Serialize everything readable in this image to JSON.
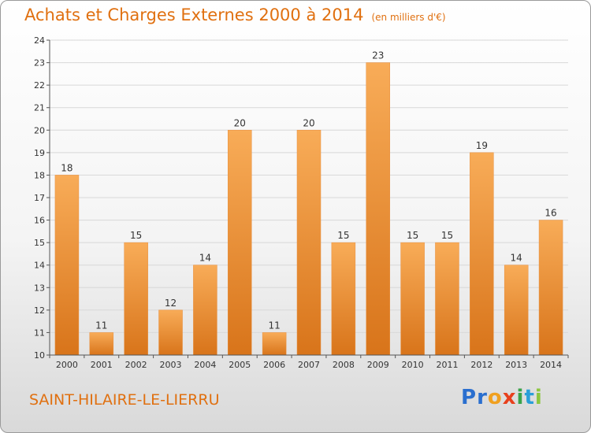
{
  "header": {
    "title": "Achats et Charges Externes 2000 à 2014",
    "subtitle": "(en milliers d'€)"
  },
  "footer": {
    "commune": "SAINT-HILAIRE-LE-LIERRU",
    "logo_letters": [
      {
        "ch": "P",
        "color": "#2a6fcf"
      },
      {
        "ch": "r",
        "color": "#2a6fcf"
      },
      {
        "ch": "o",
        "color": "#f0a020"
      },
      {
        "ch": "x",
        "color": "#e8401c"
      },
      {
        "ch": "i",
        "color": "#3aa34a"
      },
      {
        "ch": "t",
        "color": "#2a9fd8"
      },
      {
        "ch": "i",
        "color": "#8cc63e"
      }
    ]
  },
  "colors": {
    "bar_light": "#f8ac58",
    "bar_dark": "#d8741a",
    "accent": "#e07010",
    "grid": "#d8d8d8"
  },
  "chart_data": {
    "type": "bar",
    "categories": [
      "2000",
      "2001",
      "2002",
      "2003",
      "2004",
      "2005",
      "2006",
      "2007",
      "2008",
      "2009",
      "2010",
      "2011",
      "2012",
      "2013",
      "2014"
    ],
    "values": [
      18,
      11,
      15,
      12,
      14,
      20,
      11,
      20,
      15,
      23,
      15,
      15,
      19,
      14,
      16
    ],
    "ylim": [
      10,
      24
    ],
    "yticks": [
      10,
      11,
      12,
      13,
      14,
      15,
      16,
      17,
      18,
      19,
      20,
      21,
      22,
      23,
      24
    ],
    "grid": true,
    "title": "Achats et Charges Externes 2000 à 2014",
    "xlabel": "",
    "ylabel": ""
  }
}
